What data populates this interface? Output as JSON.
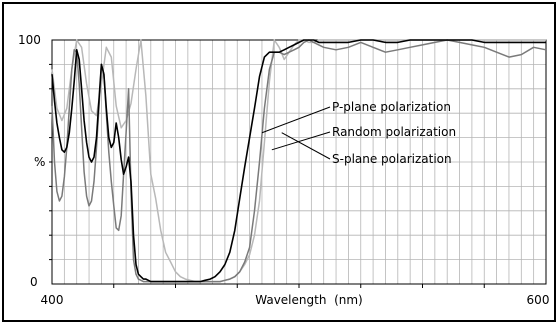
{
  "chart_data": {
    "type": "line",
    "title": "",
    "xlabel": "Wavelength  (nm)",
    "ylabel": "%",
    "xlim": [
      400,
      600
    ],
    "ylim": [
      0,
      100
    ],
    "x_ticks": [
      "400",
      "600"
    ],
    "y_ticks": [
      "0",
      "100"
    ],
    "grid": true,
    "legend": "callout labels on the right of the rising edge",
    "colors": {
      "p_plane": "#b8b8b8",
      "random": "#000000",
      "s_plane": "#7a7a7a",
      "grid": "#b5b5b5",
      "frame": "#000000"
    },
    "series": [
      {
        "name": "P-plane polarization",
        "x": [
          400,
          402,
          404,
          406,
          408,
          410,
          412,
          414,
          416,
          418,
          420,
          422,
          424,
          426,
          428,
          430,
          432,
          434,
          436,
          438,
          440,
          442,
          444,
          446,
          448,
          450,
          452,
          454,
          456,
          458,
          460,
          462,
          464,
          466,
          468,
          470,
          472,
          474,
          476,
          478,
          480,
          482,
          484,
          486,
          488,
          490,
          492,
          494,
          496,
          498,
          500,
          502,
          504,
          506,
          508,
          510,
          515,
          520,
          525,
          530,
          535,
          540,
          545,
          550,
          555,
          560,
          565,
          570,
          575,
          580,
          585,
          590,
          595,
          600
        ],
        "values": [
          88,
          72,
          67,
          72,
          88,
          100,
          97,
          82,
          71,
          69,
          82,
          97,
          93,
          73,
          64,
          67,
          74,
          88,
          100,
          77,
          45,
          35,
          22,
          13,
          9,
          5,
          3,
          2,
          1.5,
          1,
          1,
          1,
          1,
          1,
          1,
          1.5,
          2,
          3,
          5,
          8,
          12,
          20,
          34,
          58,
          83,
          100,
          97,
          92,
          95,
          98,
          100,
          100,
          99,
          99,
          100,
          100,
          100,
          100,
          100,
          100,
          100,
          100,
          100,
          100,
          100,
          100,
          100,
          100,
          100,
          100,
          100,
          100,
          100,
          100
        ]
      },
      {
        "name": "Random polarization",
        "x": [
          400,
          401,
          402,
          403,
          404,
          405,
          406,
          407,
          408,
          409,
          410,
          411,
          412,
          413,
          414,
          415,
          416,
          417,
          418,
          419,
          420,
          421,
          422,
          423,
          424,
          425,
          426,
          427,
          428,
          429,
          430,
          431,
          432,
          433,
          434,
          435,
          436,
          437,
          438,
          439,
          440,
          442,
          444,
          446,
          448,
          450,
          452,
          454,
          456,
          458,
          460,
          462,
          464,
          466,
          468,
          470,
          472,
          474,
          476,
          478,
          480,
          482,
          484,
          486,
          488,
          490,
          492,
          494,
          496,
          498,
          500,
          502,
          504,
          506,
          508,
          510,
          515,
          520,
          525,
          530,
          535,
          540,
          545,
          550,
          555,
          560,
          565,
          570,
          575,
          580,
          585,
          590,
          595,
          600
        ],
        "values": [
          86,
          75,
          66,
          60,
          55,
          54,
          56,
          62,
          72,
          83,
          96,
          92,
          80,
          67,
          58,
          52,
          50,
          52,
          60,
          75,
          90,
          86,
          72,
          60,
          56,
          58,
          66,
          60,
          51,
          45,
          48,
          52,
          42,
          20,
          8,
          4,
          3,
          2,
          2,
          1.5,
          1,
          1,
          1,
          1,
          1,
          1,
          1,
          1,
          1,
          1,
          1,
          1.5,
          2,
          3,
          5,
          8,
          13,
          22,
          35,
          48,
          60,
          72,
          85,
          93,
          95,
          95,
          95,
          96,
          97,
          98,
          99,
          100,
          100,
          100,
          99,
          99,
          99,
          99,
          100,
          100,
          99,
          99,
          100,
          100,
          100,
          100,
          100,
          100,
          99,
          99,
          99,
          99,
          99,
          99
        ]
      },
      {
        "name": "S-plane polarization",
        "x": [
          400,
          401,
          402,
          403,
          404,
          405,
          406,
          407,
          408,
          409,
          410,
          411,
          412,
          413,
          414,
          415,
          416,
          417,
          418,
          419,
          420,
          421,
          422,
          423,
          424,
          425,
          426,
          427,
          428,
          429,
          430,
          431,
          432,
          433,
          434,
          435,
          436,
          437,
          438,
          440,
          442,
          444,
          446,
          448,
          450,
          452,
          454,
          456,
          458,
          460,
          462,
          464,
          466,
          468,
          470,
          472,
          474,
          476,
          478,
          480,
          482,
          484,
          486,
          488,
          490,
          492,
          494,
          496,
          498,
          500,
          502,
          504,
          506,
          508,
          510,
          515,
          520,
          525,
          530,
          535,
          540,
          545,
          550,
          555,
          560,
          565,
          570,
          575,
          580,
          585,
          590,
          595,
          600
        ],
        "values": [
          73,
          50,
          38,
          34,
          36,
          44,
          56,
          72,
          88,
          96,
          95,
          82,
          64,
          46,
          36,
          32,
          34,
          42,
          56,
          72,
          90,
          86,
          70,
          54,
          42,
          32,
          23,
          22,
          28,
          45,
          62,
          80,
          38,
          10,
          4,
          2,
          1.5,
          1,
          1,
          1,
          1,
          1,
          1,
          1,
          1,
          1,
          1,
          1,
          1,
          1,
          1,
          1,
          1,
          1,
          1.5,
          2,
          3,
          5,
          9,
          15,
          30,
          50,
          72,
          88,
          95,
          95,
          94,
          95,
          96,
          97,
          99,
          100,
          99,
          98,
          97,
          96,
          97,
          99,
          97,
          95,
          96,
          97,
          98,
          99,
          100,
          99,
          98,
          97,
          95,
          93,
          94,
          97,
          96
        ]
      }
    ]
  }
}
